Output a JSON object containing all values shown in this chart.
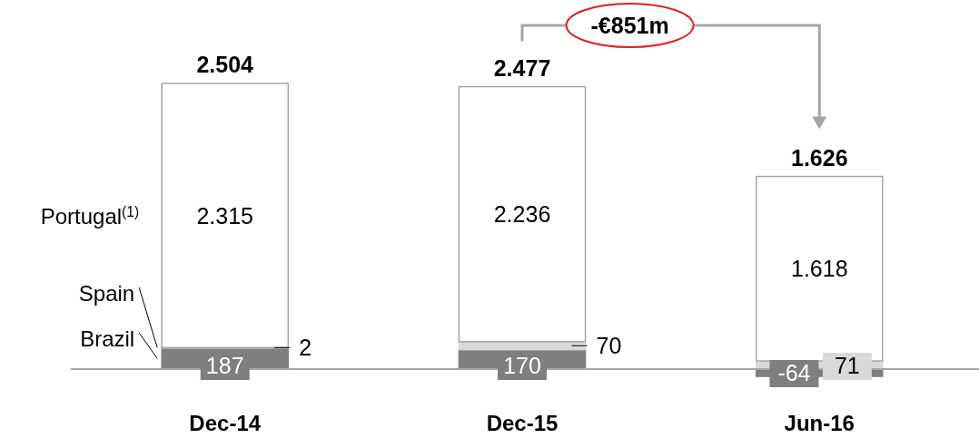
{
  "chart_data": {
    "type": "bar",
    "stacked": true,
    "categories": [
      "Dec-14",
      "Dec-15",
      "Jun-16"
    ],
    "series": [
      {
        "name": "Brazil",
        "color": "#7f7f7f",
        "values": [
          187,
          170,
          -64
        ],
        "value_labels": [
          "187",
          "170",
          "-64"
        ]
      },
      {
        "name": "Spain",
        "color": "#d9d9d9",
        "values": [
          2,
          70,
          71
        ],
        "value_labels": [
          "2",
          "70",
          "71"
        ]
      },
      {
        "name": "Portugal$^{(1)}$",
        "color": "#ffffff",
        "values": [
          2315,
          2236,
          1618
        ],
        "value_labels": [
          "2.315",
          "2.236",
          "1.618"
        ]
      }
    ],
    "totals": [
      "2.504",
      "2.477",
      "1.626"
    ],
    "annotations": [
      "-€851m"
    ]
  }
}
